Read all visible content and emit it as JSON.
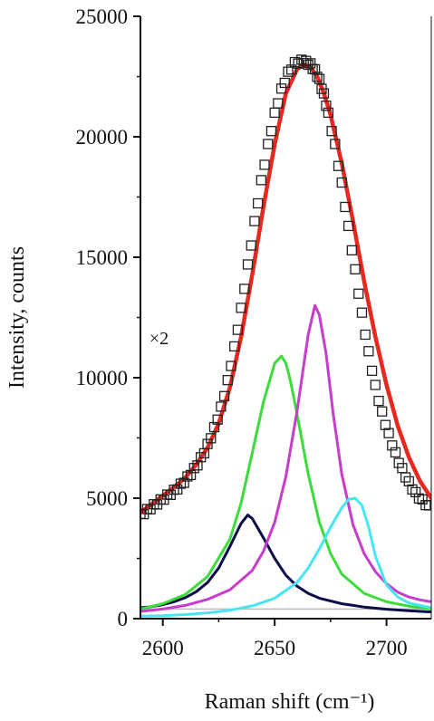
{
  "chart_data": {
    "type": "line",
    "xlabel": "Raman shift (cm⁻¹)",
    "ylabel": "Intensity, counts",
    "xlim": [
      2590,
      2720
    ],
    "ylim": [
      0,
      25000
    ],
    "x_ticks": [
      2600,
      2650,
      2700
    ],
    "y_ticks": [
      0,
      5000,
      10000,
      15000,
      20000,
      25000
    ],
    "grid": false,
    "legend": "none",
    "annotations": [
      {
        "text": "×2",
        "x": 2594,
        "y": 11400
      }
    ],
    "baseline": {
      "y": 400,
      "color": "#bdbdbd"
    },
    "series": [
      {
        "kind": "markers",
        "marker": "open-square",
        "color": "#222222",
        "x": [
          2590,
          2593,
          2596,
          2599,
          2602,
          2605,
          2608,
          2611,
          2614,
          2617,
          2620,
          2623,
          2626,
          2629,
          2632,
          2635,
          2638,
          2641,
          2644,
          2647,
          2650,
          2653,
          2656,
          2659,
          2662,
          2664,
          2666,
          2668,
          2670,
          2672,
          2674,
          2677,
          2680,
          2683,
          2686,
          2689,
          2692,
          2695,
          2698,
          2701,
          2704,
          2707,
          2710,
          2713,
          2716,
          2719
        ],
        "y": [
          4350,
          4550,
          4750,
          4950,
          5150,
          5350,
          5600,
          5900,
          6250,
          6700,
          7250,
          7950,
          8800,
          9900,
          11300,
          12900,
          14700,
          16500,
          18200,
          19700,
          21000,
          22000,
          22700,
          23100,
          23200,
          23150,
          23050,
          22800,
          22400,
          21800,
          21000,
          19700,
          18100,
          16300,
          14500,
          12700,
          11100,
          9700,
          8600,
          7700,
          6900,
          6250,
          5700,
          5250,
          4950,
          4700
        ]
      },
      {
        "kind": "fit-line",
        "color": "#e8271e",
        "x": [
          2590,
          2595,
          2600,
          2605,
          2610,
          2615,
          2620,
          2625,
          2630,
          2635,
          2640,
          2645,
          2650,
          2655,
          2660,
          2663,
          2666,
          2669,
          2672,
          2675,
          2680,
          2685,
          2690,
          2695,
          2700,
          2705,
          2710,
          2715,
          2720
        ],
        "y": [
          4400,
          4750,
          5100,
          5450,
          5850,
          6400,
          7100,
          8100,
          9600,
          11700,
          14300,
          17100,
          19700,
          21800,
          22800,
          23000,
          22900,
          22500,
          21800,
          20900,
          18900,
          16500,
          14000,
          11700,
          9700,
          8000,
          6700,
          5700,
          5000
        ]
      },
      {
        "kind": "component",
        "color": "#0a0e4a",
        "x": [
          2590,
          2595,
          2600,
          2605,
          2610,
          2615,
          2620,
          2625,
          2630,
          2635,
          2638,
          2640,
          2645,
          2650,
          2655,
          2660,
          2665,
          2670,
          2680,
          2690,
          2700,
          2710,
          2720
        ],
        "y": [
          450,
          500,
          580,
          700,
          870,
          1120,
          1500,
          2100,
          3000,
          3950,
          4300,
          4150,
          3350,
          2500,
          1800,
          1350,
          1050,
          850,
          620,
          480,
          390,
          330,
          280
        ]
      },
      {
        "kind": "component",
        "color": "#3cdc3c",
        "x": [
          2590,
          2600,
          2610,
          2620,
          2630,
          2635,
          2640,
          2645,
          2650,
          2653,
          2655,
          2657,
          2660,
          2665,
          2670,
          2675,
          2680,
          2690,
          2700,
          2710,
          2720
        ],
        "y": [
          400,
          620,
          1000,
          1750,
          3300,
          4800,
          6900,
          9000,
          10600,
          10900,
          10600,
          9900,
          8500,
          6000,
          4000,
          2700,
          1850,
          1050,
          700,
          520,
          400
        ]
      },
      {
        "kind": "component",
        "color": "#c83ccc",
        "x": [
          2590,
          2600,
          2610,
          2620,
          2630,
          2640,
          2645,
          2650,
          2655,
          2660,
          2665,
          2668,
          2670,
          2673,
          2676,
          2680,
          2685,
          2690,
          2695,
          2700,
          2705,
          2710,
          2715,
          2720
        ],
        "y": [
          300,
          400,
          550,
          800,
          1200,
          2000,
          2800,
          4000,
          5900,
          8600,
          11800,
          13000,
          12600,
          11000,
          8600,
          6000,
          3900,
          2700,
          1950,
          1450,
          1100,
          900,
          780,
          700
        ]
      },
      {
        "kind": "component",
        "color": "#48e6f0",
        "x": [
          2590,
          2600,
          2610,
          2620,
          2630,
          2640,
          2650,
          2660,
          2665,
          2670,
          2675,
          2680,
          2683,
          2686,
          2689,
          2692,
          2695,
          2700,
          2705,
          2710,
          2720
        ],
        "y": [
          100,
          120,
          170,
          240,
          350,
          530,
          850,
          1500,
          2100,
          2900,
          3800,
          4600,
          4950,
          5000,
          4700,
          3800,
          2600,
          1400,
          900,
          650,
          450
        ]
      }
    ]
  }
}
